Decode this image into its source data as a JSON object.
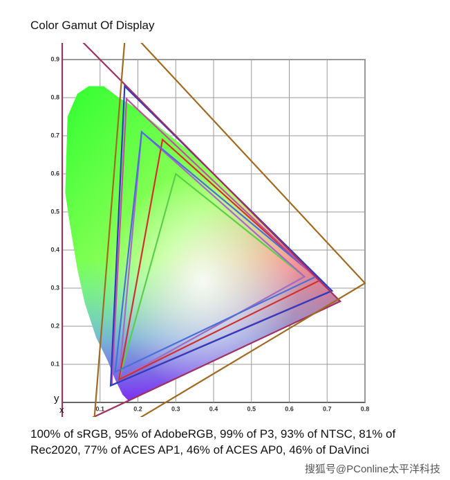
{
  "chart_data": {
    "type": "polygon",
    "title": "Color Gamut Of Display",
    "x_label": "x",
    "y_label": "y",
    "xlim": [
      0,
      0.8
    ],
    "ylim": [
      0,
      0.9
    ],
    "xticks": [
      0.1,
      0.2,
      0.3,
      0.4,
      0.5,
      0.6,
      0.7,
      0.8
    ],
    "yticks": [
      0.1,
      0.2,
      0.3,
      0.4,
      0.5,
      0.6,
      0.7,
      0.8,
      0.9
    ],
    "grid": true,
    "series": [
      {
        "color": "#5ad04a",
        "x": [
          0.64,
          0.3,
          0.15
        ],
        "y": [
          0.33,
          0.6,
          0.06
        ]
      },
      {
        "color": "#a868c8",
        "x": [
          0.64,
          0.21,
          0.15
        ],
        "y": [
          0.33,
          0.71,
          0.06
        ]
      },
      {
        "color": "#d03030",
        "x": [
          0.68,
          0.265,
          0.15
        ],
        "y": [
          0.32,
          0.69,
          0.06
        ]
      },
      {
        "color": "#4a70d8",
        "x": [
          0.67,
          0.21,
          0.14
        ],
        "y": [
          0.33,
          0.71,
          0.08
        ]
      },
      {
        "color": "#c050a0",
        "x": [
          0.708,
          0.17,
          0.131
        ],
        "y": [
          0.292,
          0.797,
          0.046
        ]
      },
      {
        "color": "#2a3cc0",
        "x": [
          0.713,
          0.165,
          0.128
        ],
        "y": [
          0.293,
          0.83,
          0.044
        ]
      },
      {
        "color": "#a03060",
        "x": [
          0.7347,
          0.0,
          0.0001
        ],
        "y": [
          0.2653,
          1.0,
          -0.077
        ]
      },
      {
        "color": "#a06a20",
        "x": [
          0.8,
          0.1682,
          0.079
        ],
        "y": [
          0.313,
          0.9877,
          -0.1155
        ]
      }
    ],
    "caption": "100% of sRGB, 95% of AdobeRGB, 99% of P3, 93% of NTSC, 81% of Rec2020, 77% of ACES AP1, 46% of ACES AP0, 46% of DaVinci",
    "watermark": "搜狐号@PConline太平洋科技"
  }
}
